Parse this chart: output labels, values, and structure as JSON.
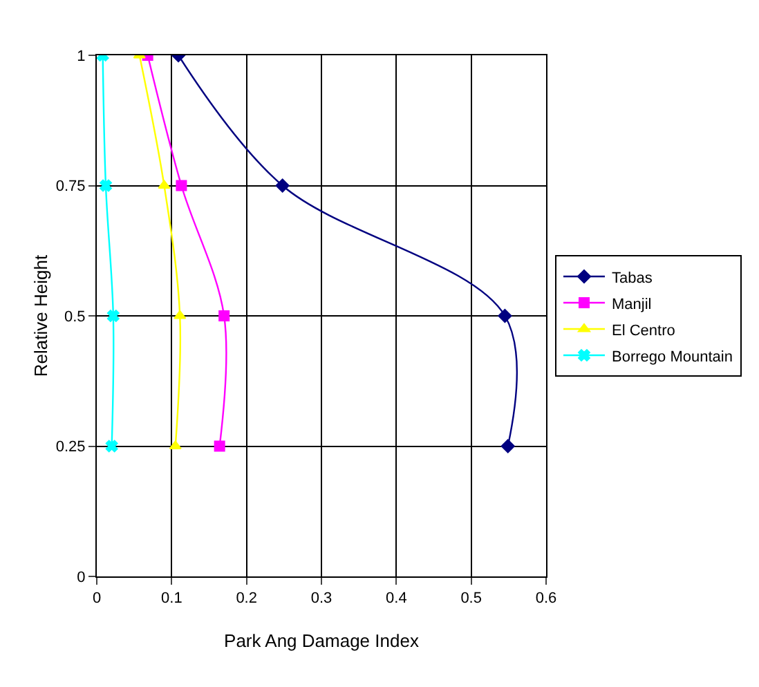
{
  "chart_data": {
    "type": "line",
    "xlabel": "Park Ang Damage Index",
    "ylabel": "Relative Height",
    "xlim": [
      0,
      0.6
    ],
    "xticks": [
      0,
      0.1,
      0.2,
      0.3,
      0.4,
      0.5,
      0.6
    ],
    "ylim": [
      0,
      1
    ],
    "yticks": [
      0,
      0.25,
      0.5,
      0.75,
      1
    ],
    "grid": true,
    "legend": "right",
    "line_style": "solid",
    "series": [
      {
        "name": "Tabas",
        "color": "#000080",
        "marker": "diamond",
        "x": [
          0.109,
          0.248,
          0.545,
          0.549
        ],
        "values": [
          1,
          0.75,
          0.5,
          0.25
        ]
      },
      {
        "name": "Manjil",
        "color": "#ff00ff",
        "marker": "square",
        "x": [
          0.068,
          0.113,
          0.17,
          0.164
        ],
        "values": [
          1,
          0.75,
          0.5,
          0.25
        ]
      },
      {
        "name": "El Centro",
        "color": "#ffff00",
        "marker": "triangle",
        "x": [
          0.057,
          0.09,
          0.111,
          0.105
        ],
        "values": [
          1,
          0.75,
          0.5,
          0.25
        ]
      },
      {
        "name": "Borrego Mountain",
        "color": "#00ffff",
        "marker": "cross",
        "x": [
          0.008,
          0.012,
          0.022,
          0.02
        ],
        "values": [
          1,
          0.75,
          0.5,
          0.25
        ]
      }
    ]
  }
}
